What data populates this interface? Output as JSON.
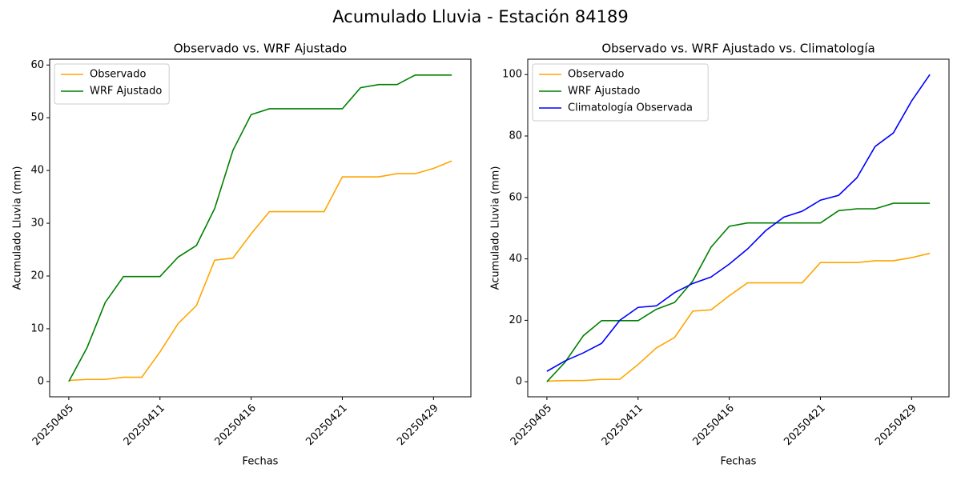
{
  "title": "Acumulado Lluvia - Estación 84189",
  "chart_data": [
    {
      "type": "line",
      "title": "Observado vs. WRF Ajustado",
      "xlabel": "Fechas",
      "ylabel": "Acumulado Lluvia (mm)",
      "categories": [
        "20250405",
        null,
        null,
        null,
        null,
        "20250411",
        null,
        null,
        null,
        null,
        "20250416",
        null,
        null,
        null,
        null,
        "20250421",
        null,
        null,
        null,
        null,
        "20250429",
        null
      ],
      "series": [
        {
          "name": "Observado",
          "color": "#ffa500",
          "values": [
            0.2,
            0.4,
            0.4,
            0.8,
            0.8,
            5.6,
            11.0,
            14.4,
            23.0,
            23.4,
            28.0,
            32.2,
            32.2,
            32.2,
            32.2,
            38.8,
            38.8,
            38.8,
            39.4,
            39.4,
            40.4,
            41.8
          ]
        },
        {
          "name": "WRF Ajustado",
          "color": "#008000",
          "values": [
            0,
            6.4,
            15.0,
            19.9,
            19.9,
            19.9,
            23.6,
            25.8,
            32.8,
            43.8,
            50.6,
            51.7,
            51.7,
            51.7,
            51.7,
            51.7,
            55.7,
            56.3,
            56.3,
            58.1,
            58.1,
            58.1
          ]
        }
      ],
      "ylim": [
        -2.9,
        61.1
      ],
      "yticks": [
        0,
        10,
        20,
        30,
        40,
        50,
        60
      ],
      "legend": "upper left"
    },
    {
      "type": "line",
      "title": "Observado vs. WRF Ajustado vs. Climatología",
      "xlabel": "Fechas",
      "ylabel": "Acumulado Lluvia (mm)",
      "categories": [
        "20250405",
        null,
        null,
        null,
        null,
        "20250411",
        null,
        null,
        null,
        null,
        "20250416",
        null,
        null,
        null,
        null,
        "20250421",
        null,
        null,
        null,
        null,
        "20250429",
        null
      ],
      "series": [
        {
          "name": "Observado",
          "color": "#ffa500",
          "values": [
            0.2,
            0.4,
            0.4,
            0.8,
            0.8,
            5.6,
            11.0,
            14.4,
            23.0,
            23.4,
            28.0,
            32.2,
            32.2,
            32.2,
            32.2,
            38.8,
            38.8,
            38.8,
            39.4,
            39.4,
            40.4,
            41.8
          ]
        },
        {
          "name": "WRF Ajustado",
          "color": "#008000",
          "values": [
            0,
            6.4,
            15.0,
            19.9,
            19.9,
            19.9,
            23.6,
            25.8,
            32.8,
            43.8,
            50.6,
            51.7,
            51.7,
            51.7,
            51.7,
            51.7,
            55.7,
            56.3,
            56.3,
            58.1,
            58.1,
            58.1
          ]
        },
        {
          "name": "Climatología Observada",
          "color": "#0000ff",
          "values": [
            3.4,
            6.8,
            9.4,
            12.5,
            20.0,
            24.2,
            24.7,
            29.0,
            32.0,
            34.1,
            38.3,
            43.2,
            49.2,
            53.6,
            55.5,
            59.1,
            60.7,
            66.4,
            76.6,
            81.0,
            91.4,
            100.0
          ]
        }
      ],
      "ylim": [
        -4.9,
        105
      ],
      "yticks": [
        0,
        20,
        40,
        60,
        80,
        100
      ],
      "legend": "upper left"
    }
  ]
}
